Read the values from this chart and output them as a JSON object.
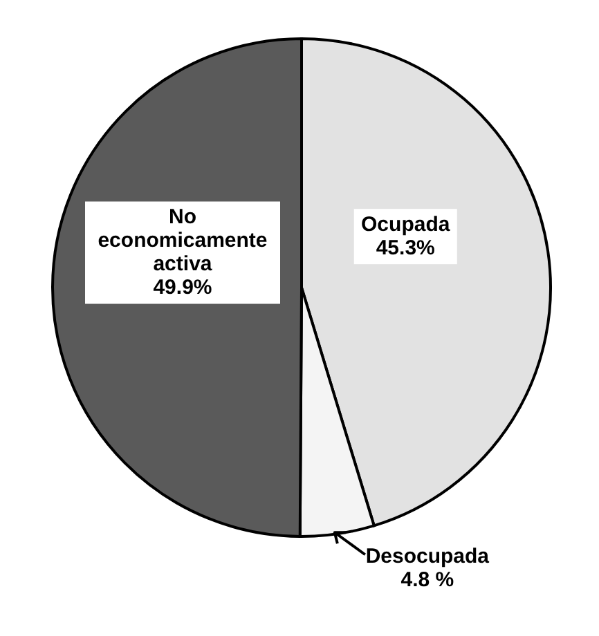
{
  "chart_data": {
    "type": "pie",
    "categories": [
      "Ocupada",
      "Desocupada",
      "No economicamente activa"
    ],
    "values": [
      45.3,
      4.8,
      49.9
    ],
    "colors": [
      "#e2e2e2",
      "#f4f4f4",
      "#5a5a5a"
    ],
    "value_labels": [
      "45.3%",
      "4.8 %",
      "49.9%"
    ]
  }
}
